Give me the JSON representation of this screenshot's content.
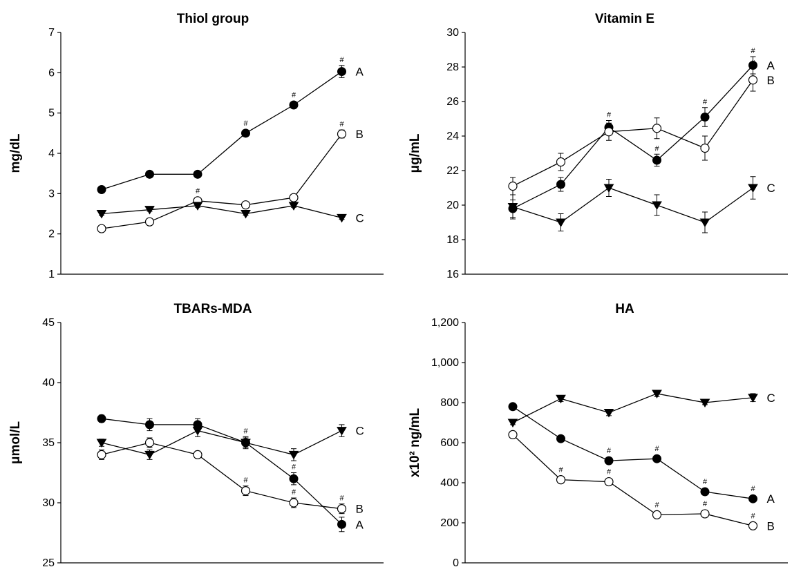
{
  "chart_data": [
    {
      "type": "line",
      "title": "Thiol group",
      "xlabel": "",
      "ylabel": "mg/dL",
      "ylim": [
        1,
        7
      ],
      "yticks": [
        1,
        2,
        3,
        4,
        5,
        6,
        7
      ],
      "ytick_labels": [
        "1",
        "2",
        "3",
        "4",
        "5",
        "6",
        "7"
      ],
      "x": [
        1,
        2,
        3,
        4,
        5,
        6
      ],
      "series": [
        {
          "name": "A",
          "marker": "filled-circle",
          "values": [
            3.1,
            3.48,
            3.48,
            4.5,
            5.2,
            6.03
          ],
          "err": [
            0.05,
            0.05,
            0.05,
            0.08,
            0.08,
            0.15
          ],
          "sig": [
            false,
            false,
            false,
            true,
            true,
            true
          ]
        },
        {
          "name": "B",
          "marker": "open-circle",
          "values": [
            2.13,
            2.3,
            2.82,
            2.72,
            2.9,
            4.48
          ],
          "err": [
            0.05,
            0.05,
            0.06,
            0.05,
            0.05,
            0.1
          ],
          "sig": [
            false,
            false,
            true,
            false,
            false,
            true
          ]
        },
        {
          "name": "C",
          "marker": "triangle-down",
          "values": [
            2.5,
            2.6,
            2.7,
            2.5,
            2.7,
            2.4
          ],
          "err": [
            0.04,
            0.04,
            0.04,
            0.04,
            0.04,
            0.04
          ],
          "sig": [
            false,
            false,
            false,
            false,
            false,
            false
          ]
        }
      ]
    },
    {
      "type": "line",
      "title": "Vitamin E",
      "xlabel": "",
      "ylabel": "μg/mL",
      "ylim": [
        16,
        30
      ],
      "yticks": [
        16,
        18,
        20,
        22,
        24,
        26,
        28,
        30
      ],
      "ytick_labels": [
        "16",
        "18",
        "20",
        "22",
        "24",
        "26",
        "28",
        "30"
      ],
      "x": [
        1,
        2,
        3,
        4,
        5,
        6
      ],
      "series": [
        {
          "name": "A",
          "marker": "filled-circle",
          "values": [
            19.8,
            21.2,
            24.5,
            22.6,
            25.1,
            28.1
          ],
          "err": [
            0.5,
            0.4,
            0.4,
            0.35,
            0.55,
            0.5
          ],
          "sig": [
            false,
            false,
            true,
            true,
            true,
            true
          ]
        },
        {
          "name": "B",
          "marker": "open-circle",
          "values": [
            21.1,
            22.5,
            24.25,
            24.45,
            23.3,
            27.25
          ],
          "err": [
            0.5,
            0.5,
            0.5,
            0.6,
            0.7,
            0.65
          ],
          "sig": [
            false,
            false,
            false,
            false,
            false,
            true
          ]
        },
        {
          "name": "C",
          "marker": "triangle-down",
          "values": [
            19.9,
            19.0,
            21.0,
            20.0,
            19.0,
            21.0
          ],
          "err": [
            0.7,
            0.5,
            0.5,
            0.6,
            0.6,
            0.65
          ],
          "sig": [
            false,
            false,
            false,
            false,
            false,
            false
          ]
        }
      ]
    },
    {
      "type": "line",
      "title": "TBARs-MDA",
      "xlabel": "",
      "ylabel": "μmol/L",
      "ylim": [
        25,
        45
      ],
      "yticks": [
        25,
        30,
        35,
        40,
        45
      ],
      "ytick_labels": [
        "25",
        "30",
        "35",
        "40",
        "45"
      ],
      "x": [
        1,
        2,
        3,
        4,
        5,
        6
      ],
      "series": [
        {
          "name": "A",
          "marker": "filled-circle",
          "values": [
            37.0,
            36.5,
            36.5,
            35.0,
            32.0,
            28.2
          ],
          "err": [
            0.3,
            0.5,
            0.5,
            0.5,
            0.5,
            0.6
          ],
          "sig": [
            false,
            false,
            false,
            true,
            true,
            true
          ]
        },
        {
          "name": "B",
          "marker": "open-circle",
          "values": [
            34.0,
            35.0,
            34.0,
            31.0,
            30.0,
            29.5
          ],
          "err": [
            0.4,
            0.4,
            0.3,
            0.4,
            0.4,
            0.4
          ],
          "sig": [
            false,
            false,
            false,
            true,
            true,
            true
          ]
        },
        {
          "name": "C",
          "marker": "triangle-down",
          "values": [
            35.0,
            34.0,
            36.0,
            35.0,
            34.0,
            36.0
          ],
          "err": [
            0.3,
            0.4,
            0.5,
            0.4,
            0.5,
            0.5
          ],
          "sig": [
            false,
            false,
            false,
            false,
            false,
            false
          ]
        }
      ]
    },
    {
      "type": "line",
      "title": "HA",
      "xlabel": "",
      "ylabel": "x10² ng/mL",
      "ylim": [
        0,
        1200
      ],
      "yticks": [
        0,
        200,
        400,
        600,
        800,
        1000,
        1200
      ],
      "ytick_labels": [
        "0",
        "200",
        "400",
        "600",
        "800",
        "1,000",
        "1,200"
      ],
      "x": [
        1,
        2,
        3,
        4,
        5,
        6
      ],
      "series": [
        {
          "name": "A",
          "marker": "filled-circle",
          "values": [
            780,
            620,
            510,
            520,
            355,
            320
          ],
          "err": [
            10,
            10,
            10,
            10,
            10,
            10
          ],
          "sig": [
            false,
            false,
            true,
            true,
            true,
            true
          ]
        },
        {
          "name": "B",
          "marker": "open-circle",
          "values": [
            640,
            415,
            405,
            240,
            245,
            185
          ],
          "err": [
            8,
            8,
            8,
            8,
            8,
            8
          ],
          "sig": [
            false,
            true,
            true,
            true,
            true,
            true
          ]
        },
        {
          "name": "C",
          "marker": "triangle-down",
          "values": [
            700,
            820,
            750,
            845,
            800,
            825
          ],
          "err": [
            10,
            15,
            15,
            15,
            10,
            20
          ],
          "sig": [
            false,
            false,
            false,
            false,
            false,
            false
          ]
        }
      ]
    }
  ]
}
